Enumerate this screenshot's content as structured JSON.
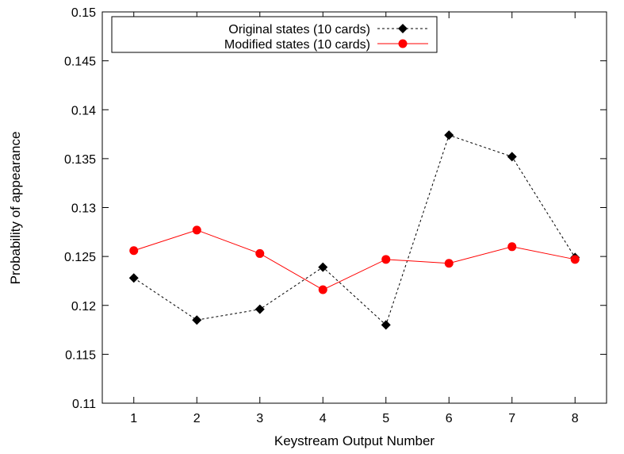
{
  "chart_data": {
    "type": "line",
    "title": "",
    "xlabel": "Keystream Output Number",
    "ylabel": "Probability of appearance",
    "xlim": [
      0.5,
      8.5
    ],
    "ylim": [
      0.11,
      0.15
    ],
    "xticks": [
      1,
      2,
      3,
      4,
      5,
      6,
      7,
      8
    ],
    "yticks": [
      0.11,
      0.115,
      0.12,
      0.125,
      0.13,
      0.135,
      0.14,
      0.145,
      0.15
    ],
    "ytick_labels": [
      "0.11",
      "0.115",
      "0.12",
      "0.125",
      "0.13",
      "0.135",
      "0.14",
      "0.145",
      "0.15"
    ],
    "grid": false,
    "legend_position": "top-left",
    "series": [
      {
        "name": "Original states (10 cards)",
        "x": [
          1,
          2,
          3,
          4,
          5,
          6,
          7,
          8
        ],
        "y": [
          0.1228,
          0.1185,
          0.1196,
          0.1239,
          0.118,
          0.1374,
          0.1352,
          0.1249
        ],
        "color": "#000000",
        "line_style": "dashed",
        "marker": "diamond"
      },
      {
        "name": "Modified states (10 cards)",
        "x": [
          1,
          2,
          3,
          4,
          5,
          6,
          7,
          8
        ],
        "y": [
          0.1256,
          0.1277,
          0.1253,
          0.1216,
          0.1247,
          0.1243,
          0.126,
          0.1247
        ],
        "color": "#ff0000",
        "line_style": "solid",
        "marker": "circle"
      }
    ]
  }
}
